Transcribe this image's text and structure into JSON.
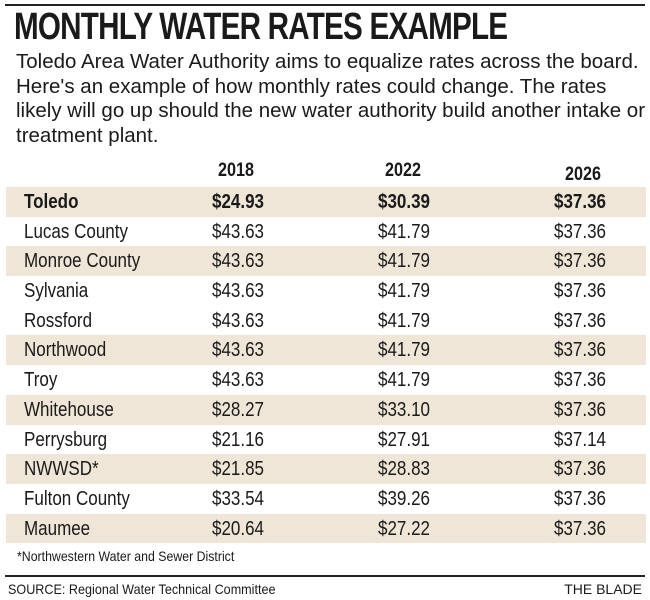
{
  "title": "MONTHLY WATER RATES EXAMPLE",
  "intro": "Toledo Area Water Authority aims to equalize rates across the board. Here's an example of how monthly rates could change. The rates likely will go up should the new water authority build another intake or treatment plant.",
  "footnote": "*Northwestern Water and Sewer District",
  "source": "SOURCE: Regional Water Technical Committee",
  "credit": "THE BLADE",
  "colors": {
    "row_shade": "#efe6d8",
    "text": "#1a1a1a"
  },
  "chart_data": {
    "type": "table",
    "title": "MONTHLY WATER RATES EXAMPLE",
    "columns": [
      "2018",
      "2022",
      "2026"
    ],
    "rows": [
      {
        "name": "Toledo",
        "values": [
          "$24.93",
          "$30.39",
          "$37.36"
        ],
        "bold": true,
        "shaded": true
      },
      {
        "name": "Lucas County",
        "values": [
          "$43.63",
          "$41.79",
          "$37.36"
        ],
        "shaded": false
      },
      {
        "name": "Monroe County",
        "values": [
          "$43.63",
          "$41.79",
          "$37.36"
        ],
        "shaded": true
      },
      {
        "name": "Sylvania",
        "values": [
          "$43.63",
          "$41.79",
          "$37.36"
        ],
        "shaded": false
      },
      {
        "name": "Rossford",
        "values": [
          "$43.63",
          "$41.79",
          "$37.36"
        ],
        "shaded": false
      },
      {
        "name": "Northwood",
        "values": [
          "$43.63",
          "$41.79",
          "$37.36"
        ],
        "shaded": true
      },
      {
        "name": "Troy",
        "values": [
          "$43.63",
          "$41.79",
          "$37.36"
        ],
        "shaded": false
      },
      {
        "name": "Whitehouse",
        "values": [
          "$28.27",
          "$33.10",
          "$37.36"
        ],
        "shaded": true
      },
      {
        "name": "Perrysburg",
        "values": [
          "$21.16",
          "$27.91",
          "$37.14"
        ],
        "shaded": false
      },
      {
        "name": "NWWSD*",
        "values": [
          "$21.85",
          "$28.83",
          "$37.36"
        ],
        "shaded": true
      },
      {
        "name": "Fulton County",
        "values": [
          "$33.54",
          "$39.26",
          "$37.36"
        ],
        "shaded": false
      },
      {
        "name": "Maumee",
        "values": [
          "$20.64",
          "$27.22",
          "$37.36"
        ],
        "shaded": true
      }
    ]
  }
}
